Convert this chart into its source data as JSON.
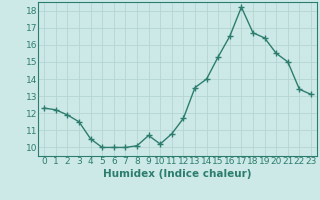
{
  "x": [
    0,
    1,
    2,
    3,
    4,
    5,
    6,
    7,
    8,
    9,
    10,
    11,
    12,
    13,
    14,
    15,
    16,
    17,
    18,
    19,
    20,
    21,
    22,
    23
  ],
  "y": [
    12.3,
    12.2,
    11.9,
    11.5,
    10.5,
    10.0,
    10.0,
    10.0,
    10.1,
    10.7,
    10.2,
    10.8,
    11.7,
    13.5,
    14.0,
    15.3,
    16.5,
    18.2,
    16.7,
    16.4,
    15.5,
    15.0,
    13.4,
    13.1
  ],
  "line_color": "#2d7d6e",
  "marker": "+",
  "marker_size": 4,
  "line_width": 1.0,
  "bg_color": "#cce9e7",
  "grid_color": "#b5d5d2",
  "xlabel": "Humidex (Indice chaleur)",
  "xlim": [
    -0.5,
    23.5
  ],
  "ylim": [
    9.5,
    18.5
  ],
  "yticks": [
    10,
    11,
    12,
    13,
    14,
    15,
    16,
    17,
    18
  ],
  "xticks": [
    0,
    1,
    2,
    3,
    4,
    5,
    6,
    7,
    8,
    9,
    10,
    11,
    12,
    13,
    14,
    15,
    16,
    17,
    18,
    19,
    20,
    21,
    22,
    23
  ],
  "tick_label_fontsize": 6.5,
  "xlabel_fontsize": 7.5,
  "spine_color": "#2d7d6e"
}
